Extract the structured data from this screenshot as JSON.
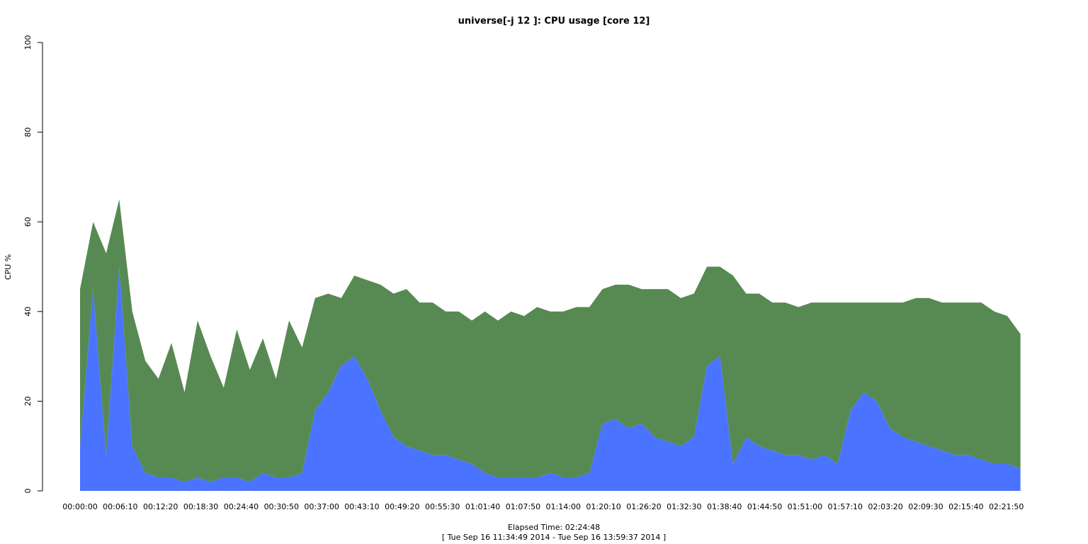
{
  "chart_data": {
    "type": "area",
    "stacked": true,
    "title": "universe[-j 12  ]: CPU usage [core 12]",
    "y_label": "CPU %",
    "x_label": "Elapsed Time: 02:24:48",
    "subtitle": "[ Tue Sep 16 11:34:49 2014 - Tue Sep 16 13:59:37 2014 ]",
    "x": [
      0,
      120,
      240,
      360,
      480,
      600,
      720,
      840,
      960,
      1080,
      1200,
      1320,
      1440,
      1560,
      1680,
      1800,
      1920,
      2040,
      2160,
      2280,
      2400,
      2520,
      2640,
      2760,
      2880,
      3000,
      3120,
      3240,
      3360,
      3480,
      3600,
      3720,
      3840,
      3960,
      4080,
      4200,
      4320,
      4440,
      4560,
      4680,
      4800,
      4920,
      5040,
      5160,
      5280,
      5400,
      5520,
      5640,
      5760,
      5880,
      6000,
      6120,
      6240,
      6360,
      6480,
      6600,
      6720,
      6840,
      6960,
      7080,
      7200,
      7320,
      7440,
      7560,
      7680,
      7800,
      7920,
      8040,
      8160,
      8280,
      8400,
      8520,
      8640
    ],
    "series": [
      {
        "color": "#4a74ff",
        "values": [
          10,
          45,
          8,
          50,
          10,
          4,
          3,
          3,
          2,
          3,
          2,
          3,
          3,
          2,
          4,
          3,
          3,
          4,
          18,
          22,
          28,
          30,
          25,
          18,
          12,
          10,
          9,
          8,
          8,
          7,
          6,
          4,
          3,
          3,
          3,
          3,
          4,
          3,
          3,
          4,
          15,
          16,
          14,
          15,
          12,
          11,
          10,
          12,
          28,
          30,
          6,
          12,
          10,
          9,
          8,
          8,
          7,
          8,
          6,
          18,
          22,
          20,
          14,
          12,
          11,
          10,
          9,
          8,
          8,
          7,
          6,
          6,
          5
        ]
      },
      {
        "color": "#568a52",
        "values": [
          35,
          15,
          45,
          15,
          30,
          25,
          22,
          30,
          20,
          35,
          28,
          20,
          33,
          25,
          30,
          22,
          35,
          28,
          25,
          22,
          15,
          18,
          22,
          28,
          32,
          35,
          33,
          34,
          32,
          33,
          32,
          36,
          35,
          37,
          36,
          38,
          36,
          37,
          38,
          37,
          30,
          30,
          32,
          30,
          33,
          34,
          33,
          32,
          22,
          20,
          42,
          32,
          34,
          33,
          34,
          33,
          35,
          34,
          36,
          24,
          20,
          22,
          28,
          30,
          32,
          33,
          33,
          34,
          34,
          35,
          34,
          33,
          30
        ]
      }
    ],
    "xlim": [
      0,
      8688
    ],
    "xticks": [
      {
        "value": 0,
        "label": "00:00:00"
      },
      {
        "value": 370,
        "label": "00:06:10"
      },
      {
        "value": 740,
        "label": "00:12:20"
      },
      {
        "value": 1110,
        "label": "00:18:30"
      },
      {
        "value": 1480,
        "label": "00:24:40"
      },
      {
        "value": 1850,
        "label": "00:30:50"
      },
      {
        "value": 2220,
        "label": "00:37:00"
      },
      {
        "value": 2590,
        "label": "00:43:10"
      },
      {
        "value": 2960,
        "label": "00:49:20"
      },
      {
        "value": 3330,
        "label": "00:55:30"
      },
      {
        "value": 3700,
        "label": "01:01:40"
      },
      {
        "value": 4070,
        "label": "01:07:50"
      },
      {
        "value": 4440,
        "label": "01:14:00"
      },
      {
        "value": 4810,
        "label": "01:20:10"
      },
      {
        "value": 5180,
        "label": "01:26:20"
      },
      {
        "value": 5550,
        "label": "01:32:30"
      },
      {
        "value": 5920,
        "label": "01:38:40"
      },
      {
        "value": 6290,
        "label": "01:44:50"
      },
      {
        "value": 6660,
        "label": "01:51:00"
      },
      {
        "value": 7030,
        "label": "01:57:10"
      },
      {
        "value": 7400,
        "label": "02:03:20"
      },
      {
        "value": 7770,
        "label": "02:09:30"
      },
      {
        "value": 8140,
        "label": "02:15:40"
      },
      {
        "value": 8510,
        "label": "02:21:50"
      }
    ],
    "ylim": [
      0,
      100
    ],
    "yticks": [
      0,
      20,
      40,
      60,
      80,
      100
    ]
  }
}
